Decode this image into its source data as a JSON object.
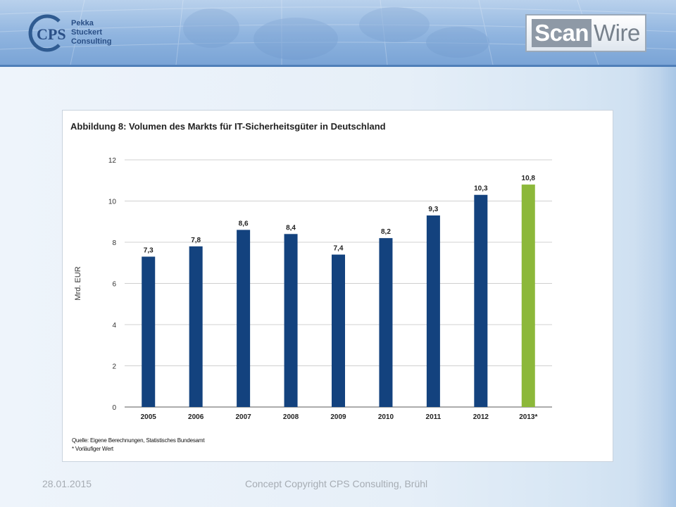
{
  "header": {
    "cps_logo_text": "CPS",
    "company_lines": [
      "Pekka",
      "Stuckert",
      "Consulting"
    ],
    "scanwire": {
      "part1": "Scan",
      "part2": "Wire"
    }
  },
  "chart_data": {
    "type": "bar",
    "title": "Abbildung 8: Volumen des Markts für IT-Sicherheitsgüter in Deutschland",
    "ylabel": "Mrd. EUR",
    "xlabel": "",
    "categories": [
      "2005",
      "2006",
      "2007",
      "2008",
      "2009",
      "2010",
      "2011",
      "2012",
      "2013*"
    ],
    "values": [
      7.3,
      7.8,
      8.6,
      8.4,
      7.4,
      8.2,
      9.3,
      10.3,
      10.8
    ],
    "data_labels": [
      "7,3",
      "7,8",
      "8,6",
      "8,4",
      "7,4",
      "8,2",
      "9,3",
      "10,3",
      "10,8"
    ],
    "ylim": [
      0,
      12
    ],
    "yticks": [
      0,
      2,
      4,
      6,
      8,
      10,
      12
    ],
    "grid": true,
    "colors": {
      "default": "#13427e",
      "highlight": "#8cb83a",
      "grid": "#d0d0d0",
      "axis": "#7a7a7a"
    },
    "highlight_index": 8,
    "notes": [
      "Quelle: Eigene Berechnungen, Statistisches Bundesamt",
      "* Vorläufiger Wert"
    ]
  },
  "footer": {
    "date": "28.01.2015",
    "copyright": "Concept Copyright CPS Consulting, Brühl"
  }
}
